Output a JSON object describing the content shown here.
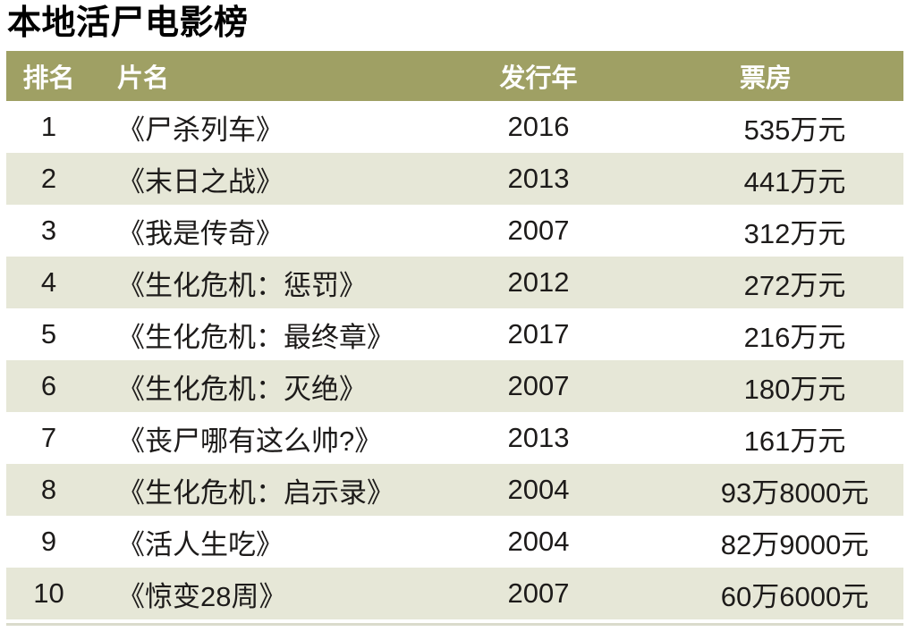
{
  "page_title": "本地活尸电影榜",
  "colors": {
    "header_bg": "#9fa064",
    "alt_row_bg": "#e6e7d7",
    "header_text": "#ffffff",
    "body_text": "#1d1b1a",
    "bottom_rule": "#dadbcc"
  },
  "table": {
    "columns": [
      {
        "key": "rank",
        "label": "排名"
      },
      {
        "key": "title",
        "label": "片名"
      },
      {
        "key": "year",
        "label": "发行年"
      },
      {
        "key": "box_office",
        "label": "票房"
      }
    ],
    "rows": [
      {
        "rank": "1",
        "title": "《尸杀列车》",
        "year": "2016",
        "box_office": "535万元"
      },
      {
        "rank": "2",
        "title": "《末日之战》",
        "year": "2013",
        "box_office": "441万元"
      },
      {
        "rank": "3",
        "title": "《我是传奇》",
        "year": "2007",
        "box_office": "312万元"
      },
      {
        "rank": "4",
        "title": "《生化危机：惩罚》",
        "year": "2012",
        "box_office": "272万元"
      },
      {
        "rank": "5",
        "title": "《生化危机：最终章》",
        "year": "2017",
        "box_office": "216万元"
      },
      {
        "rank": "6",
        "title": "《生化危机：灭绝》",
        "year": "2007",
        "box_office": "180万元"
      },
      {
        "rank": "7",
        "title": "《丧尸哪有这么帅?》",
        "year": "2013",
        "box_office": "161万元"
      },
      {
        "rank": "8",
        "title": "《生化危机：启示录》",
        "year": "2004",
        "box_office": "93万8000元"
      },
      {
        "rank": "9",
        "title": "《活人生吃》",
        "year": "2004",
        "box_office": "82万9000元"
      },
      {
        "rank": "10",
        "title": "《惊变28周》",
        "year": "2007",
        "box_office": "60万6000元"
      }
    ]
  },
  "chart_data": {
    "type": "table",
    "title": "本地活尸电影榜",
    "columns": [
      "排名",
      "片名",
      "发行年",
      "票房"
    ],
    "rows": [
      [
        "1",
        "《尸杀列车》",
        "2016",
        "535万元"
      ],
      [
        "2",
        "《末日之战》",
        "2013",
        "441万元"
      ],
      [
        "3",
        "《我是传奇》",
        "2007",
        "312万元"
      ],
      [
        "4",
        "《生化危机：惩罚》",
        "2012",
        "272万元"
      ],
      [
        "5",
        "《生化危机：最终章》",
        "2017",
        "216万元"
      ],
      [
        "6",
        "《生化危机：灭绝》",
        "2007",
        "180万元"
      ],
      [
        "7",
        "《丧尸哪有这么帅?》",
        "2013",
        "161万元"
      ],
      [
        "8",
        "《生化危机：启示录》",
        "2004",
        "93万8000元"
      ],
      [
        "9",
        "《活人生吃》",
        "2004",
        "82万9000元"
      ],
      [
        "10",
        "《惊变28周》",
        "2007",
        "60万6000元"
      ]
    ],
    "box_office_wan_yuan": [
      535,
      441,
      312,
      272,
      216,
      180,
      161,
      93.8,
      82.9,
      60.6
    ],
    "years": [
      2016,
      2013,
      2007,
      2012,
      2017,
      2007,
      2013,
      2004,
      2004,
      2007
    ]
  }
}
